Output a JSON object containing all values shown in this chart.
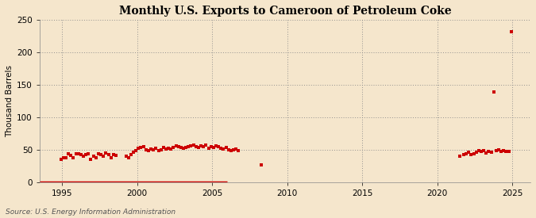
{
  "title": "Monthly U.S. Exports to Cameroon of Petroleum Coke",
  "ylabel": "Thousand Barrels",
  "source": "Source: U.S. Energy Information Administration",
  "background_color": "#f5e6cc",
  "plot_bg_color": "#f5e6cc",
  "dot_color": "#cc0000",
  "xlim": [
    1993.5,
    2026.2
  ],
  "ylim": [
    0,
    250
  ],
  "yticks": [
    0,
    50,
    100,
    150,
    200,
    250
  ],
  "xticks": [
    1995,
    2000,
    2005,
    2010,
    2015,
    2020,
    2025
  ],
  "data_points": [
    [
      1994.917,
      35
    ],
    [
      1995.083,
      37
    ],
    [
      1995.25,
      38
    ],
    [
      1995.417,
      44
    ],
    [
      1995.583,
      41
    ],
    [
      1995.75,
      38
    ],
    [
      1995.917,
      44
    ],
    [
      1996.083,
      44
    ],
    [
      1996.25,
      43
    ],
    [
      1996.417,
      40
    ],
    [
      1996.583,
      42
    ],
    [
      1996.75,
      44
    ],
    [
      1996.917,
      35
    ],
    [
      1997.083,
      40
    ],
    [
      1997.25,
      38
    ],
    [
      1997.417,
      44
    ],
    [
      1997.583,
      43
    ],
    [
      1997.75,
      40
    ],
    [
      1997.917,
      45
    ],
    [
      1998.083,
      42
    ],
    [
      1998.25,
      38
    ],
    [
      1998.417,
      42
    ],
    [
      1998.583,
      41
    ],
    [
      1999.25,
      40
    ],
    [
      1999.417,
      38
    ],
    [
      1999.583,
      42
    ],
    [
      1999.75,
      46
    ],
    [
      1999.917,
      49
    ],
    [
      2000.083,
      52
    ],
    [
      2000.25,
      54
    ],
    [
      2000.417,
      55
    ],
    [
      2000.583,
      50
    ],
    [
      2000.75,
      49
    ],
    [
      2000.917,
      51
    ],
    [
      2001.083,
      50
    ],
    [
      2001.25,
      52
    ],
    [
      2001.417,
      48
    ],
    [
      2001.583,
      50
    ],
    [
      2001.75,
      53
    ],
    [
      2001.917,
      51
    ],
    [
      2002.083,
      52
    ],
    [
      2002.25,
      51
    ],
    [
      2002.417,
      54
    ],
    [
      2002.583,
      56
    ],
    [
      2002.75,
      55
    ],
    [
      2002.917,
      54
    ],
    [
      2003.083,
      52
    ],
    [
      2003.25,
      53
    ],
    [
      2003.417,
      55
    ],
    [
      2003.583,
      56
    ],
    [
      2003.75,
      57
    ],
    [
      2003.917,
      55
    ],
    [
      2004.083,
      54
    ],
    [
      2004.25,
      56
    ],
    [
      2004.417,
      55
    ],
    [
      2004.583,
      57
    ],
    [
      2004.75,
      52
    ],
    [
      2004.917,
      55
    ],
    [
      2005.083,
      54
    ],
    [
      2005.25,
      56
    ],
    [
      2005.417,
      55
    ],
    [
      2005.583,
      52
    ],
    [
      2005.75,
      51
    ],
    [
      2005.917,
      53
    ],
    [
      2006.083,
      50
    ],
    [
      2006.25,
      49
    ],
    [
      2006.417,
      50
    ],
    [
      2006.583,
      51
    ],
    [
      2006.75,
      49
    ],
    [
      2008.25,
      27
    ],
    [
      2021.5,
      40
    ],
    [
      2021.75,
      42
    ],
    [
      2021.917,
      44
    ],
    [
      2022.083,
      46
    ],
    [
      2022.25,
      42
    ],
    [
      2022.417,
      44
    ],
    [
      2022.583,
      46
    ],
    [
      2022.75,
      48
    ],
    [
      2022.917,
      47
    ],
    [
      2023.083,
      48
    ],
    [
      2023.25,
      45
    ],
    [
      2023.417,
      47
    ],
    [
      2023.583,
      46
    ],
    [
      2023.75,
      139
    ],
    [
      2023.917,
      49
    ],
    [
      2024.083,
      50
    ],
    [
      2024.25,
      47
    ],
    [
      2024.417,
      48
    ],
    [
      2024.583,
      47
    ],
    [
      2024.75,
      47
    ],
    [
      2024.917,
      232
    ]
  ],
  "zero_line_start": 1993.5,
  "zero_line_end": 2006.0
}
